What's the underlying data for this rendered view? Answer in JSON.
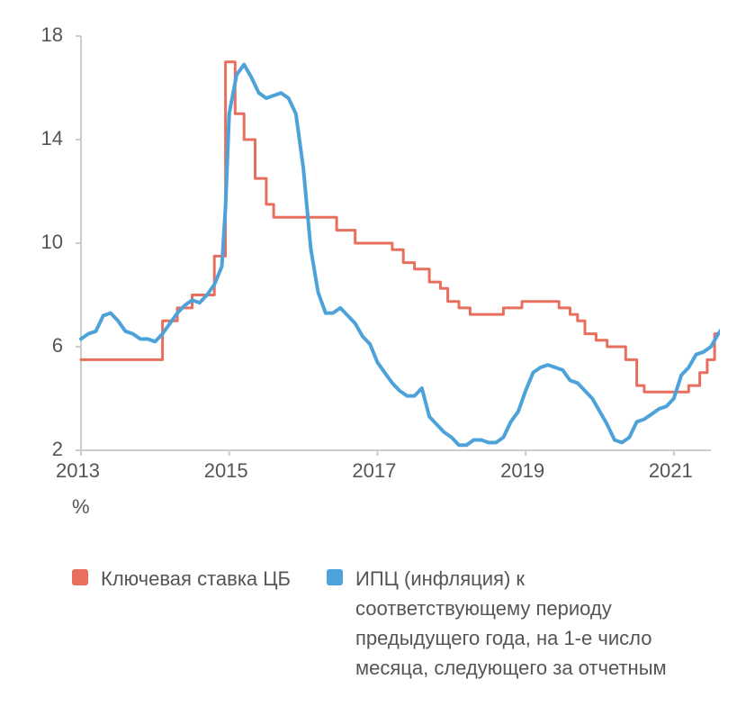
{
  "chart": {
    "type": "line",
    "background_color": "#ffffff",
    "axis_color": "#cccccc",
    "tick_label_color": "#555555",
    "tick_label_fontsize": 22,
    "xlim": [
      2013,
      2021.5
    ],
    "ylim": [
      2,
      18
    ],
    "yticks": [
      2,
      6,
      10,
      14,
      18
    ],
    "xticks": [
      2013,
      2015,
      2017,
      2019,
      2021
    ],
    "unit_label": "%",
    "series": [
      {
        "name": "key_rate",
        "label": "Ключевая ставка ЦБ",
        "color": "#e86f5e",
        "line_width": 3,
        "style": "step",
        "data": [
          [
            2013.0,
            5.5
          ],
          [
            2013.7,
            5.5
          ],
          [
            2013.7,
            5.5
          ],
          [
            2014.1,
            5.5
          ],
          [
            2014.1,
            7.0
          ],
          [
            2014.3,
            7.0
          ],
          [
            2014.3,
            7.5
          ],
          [
            2014.5,
            7.5
          ],
          [
            2014.5,
            8.0
          ],
          [
            2014.8,
            8.0
          ],
          [
            2014.8,
            9.5
          ],
          [
            2014.95,
            9.5
          ],
          [
            2014.95,
            17.0
          ],
          [
            2015.08,
            17.0
          ],
          [
            2015.08,
            15.0
          ],
          [
            2015.2,
            15.0
          ],
          [
            2015.2,
            14.0
          ],
          [
            2015.35,
            14.0
          ],
          [
            2015.35,
            12.5
          ],
          [
            2015.5,
            12.5
          ],
          [
            2015.5,
            11.5
          ],
          [
            2015.6,
            11.5
          ],
          [
            2015.6,
            11.0
          ],
          [
            2016.45,
            11.0
          ],
          [
            2016.45,
            10.5
          ],
          [
            2016.7,
            10.5
          ],
          [
            2016.7,
            10.0
          ],
          [
            2017.2,
            10.0
          ],
          [
            2017.2,
            9.75
          ],
          [
            2017.35,
            9.75
          ],
          [
            2017.35,
            9.25
          ],
          [
            2017.5,
            9.25
          ],
          [
            2017.5,
            9.0
          ],
          [
            2017.7,
            9.0
          ],
          [
            2017.7,
            8.5
          ],
          [
            2017.85,
            8.5
          ],
          [
            2017.85,
            8.25
          ],
          [
            2017.95,
            8.25
          ],
          [
            2017.95,
            7.75
          ],
          [
            2018.1,
            7.75
          ],
          [
            2018.1,
            7.5
          ],
          [
            2018.25,
            7.5
          ],
          [
            2018.25,
            7.25
          ],
          [
            2018.7,
            7.25
          ],
          [
            2018.7,
            7.5
          ],
          [
            2018.95,
            7.5
          ],
          [
            2018.95,
            7.75
          ],
          [
            2019.45,
            7.75
          ],
          [
            2019.45,
            7.5
          ],
          [
            2019.6,
            7.5
          ],
          [
            2019.6,
            7.25
          ],
          [
            2019.7,
            7.25
          ],
          [
            2019.7,
            7.0
          ],
          [
            2019.8,
            7.0
          ],
          [
            2019.8,
            6.5
          ],
          [
            2019.95,
            6.5
          ],
          [
            2019.95,
            6.25
          ],
          [
            2020.1,
            6.25
          ],
          [
            2020.1,
            6.0
          ],
          [
            2020.35,
            6.0
          ],
          [
            2020.35,
            5.5
          ],
          [
            2020.5,
            5.5
          ],
          [
            2020.5,
            4.5
          ],
          [
            2020.6,
            4.5
          ],
          [
            2020.6,
            4.25
          ],
          [
            2021.2,
            4.25
          ],
          [
            2021.2,
            4.5
          ],
          [
            2021.35,
            4.5
          ],
          [
            2021.35,
            5.0
          ],
          [
            2021.45,
            5.0
          ],
          [
            2021.45,
            5.5
          ],
          [
            2021.55,
            5.5
          ],
          [
            2021.55,
            6.5
          ],
          [
            2021.65,
            6.5
          ]
        ]
      },
      {
        "name": "cpi_inflation",
        "label": "ИПЦ (инфляция) к соответствующему периоду предыдущего года, на 1-е число месяца, следующего за отчетным",
        "color": "#4da3d9",
        "line_width": 4,
        "style": "smooth",
        "data": [
          [
            2013.0,
            6.3
          ],
          [
            2013.1,
            6.5
          ],
          [
            2013.2,
            6.6
          ],
          [
            2013.3,
            7.2
          ],
          [
            2013.4,
            7.3
          ],
          [
            2013.5,
            7.0
          ],
          [
            2013.6,
            6.6
          ],
          [
            2013.7,
            6.5
          ],
          [
            2013.8,
            6.3
          ],
          [
            2013.9,
            6.3
          ],
          [
            2014.0,
            6.2
          ],
          [
            2014.1,
            6.5
          ],
          [
            2014.2,
            6.9
          ],
          [
            2014.3,
            7.3
          ],
          [
            2014.4,
            7.6
          ],
          [
            2014.5,
            7.8
          ],
          [
            2014.6,
            7.7
          ],
          [
            2014.7,
            8.0
          ],
          [
            2014.8,
            8.4
          ],
          [
            2014.9,
            9.1
          ],
          [
            2014.95,
            11.4
          ],
          [
            2015.0,
            15.0
          ],
          [
            2015.1,
            16.5
          ],
          [
            2015.2,
            16.9
          ],
          [
            2015.3,
            16.4
          ],
          [
            2015.4,
            15.8
          ],
          [
            2015.5,
            15.6
          ],
          [
            2015.6,
            15.7
          ],
          [
            2015.7,
            15.8
          ],
          [
            2015.8,
            15.6
          ],
          [
            2015.9,
            15.0
          ],
          [
            2016.0,
            12.9
          ],
          [
            2016.1,
            9.8
          ],
          [
            2016.2,
            8.1
          ],
          [
            2016.3,
            7.3
          ],
          [
            2016.4,
            7.3
          ],
          [
            2016.5,
            7.5
          ],
          [
            2016.6,
            7.2
          ],
          [
            2016.7,
            6.9
          ],
          [
            2016.8,
            6.4
          ],
          [
            2016.9,
            6.1
          ],
          [
            2017.0,
            5.4
          ],
          [
            2017.1,
            5.0
          ],
          [
            2017.2,
            4.6
          ],
          [
            2017.3,
            4.3
          ],
          [
            2017.4,
            4.1
          ],
          [
            2017.5,
            4.1
          ],
          [
            2017.6,
            4.4
          ],
          [
            2017.7,
            3.3
          ],
          [
            2017.8,
            3.0
          ],
          [
            2017.9,
            2.7
          ],
          [
            2018.0,
            2.5
          ],
          [
            2018.1,
            2.2
          ],
          [
            2018.2,
            2.2
          ],
          [
            2018.3,
            2.4
          ],
          [
            2018.4,
            2.4
          ],
          [
            2018.5,
            2.3
          ],
          [
            2018.6,
            2.3
          ],
          [
            2018.7,
            2.5
          ],
          [
            2018.8,
            3.1
          ],
          [
            2018.9,
            3.5
          ],
          [
            2019.0,
            4.3
          ],
          [
            2019.1,
            5.0
          ],
          [
            2019.2,
            5.2
          ],
          [
            2019.3,
            5.3
          ],
          [
            2019.4,
            5.2
          ],
          [
            2019.5,
            5.1
          ],
          [
            2019.6,
            4.7
          ],
          [
            2019.7,
            4.6
          ],
          [
            2019.8,
            4.3
          ],
          [
            2019.9,
            4.0
          ],
          [
            2020.0,
            3.5
          ],
          [
            2020.1,
            3.0
          ],
          [
            2020.2,
            2.4
          ],
          [
            2020.3,
            2.3
          ],
          [
            2020.4,
            2.5
          ],
          [
            2020.5,
            3.1
          ],
          [
            2020.6,
            3.2
          ],
          [
            2020.7,
            3.4
          ],
          [
            2020.8,
            3.6
          ],
          [
            2020.9,
            3.7
          ],
          [
            2021.0,
            4.0
          ],
          [
            2021.1,
            4.9
          ],
          [
            2021.2,
            5.2
          ],
          [
            2021.3,
            5.7
          ],
          [
            2021.4,
            5.8
          ],
          [
            2021.5,
            6.0
          ],
          [
            2021.6,
            6.5
          ],
          [
            2021.65,
            6.7
          ]
        ]
      }
    ]
  }
}
